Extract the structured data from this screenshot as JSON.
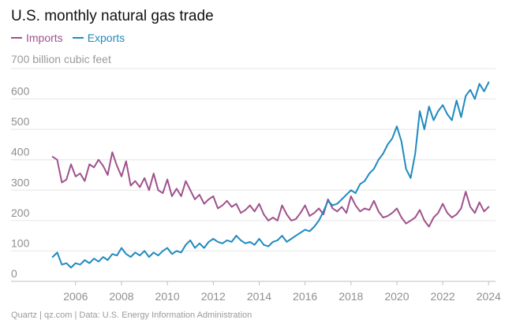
{
  "title": "U.S. monthly natural gas trade",
  "unit_label": "700 billion cubic feet",
  "footer": "Quartz | qz.com | Data: U.S. Energy Information Administration",
  "colors": {
    "imports": "#a0518c",
    "exports": "#1f8ac0",
    "grid": "#e6e6e6",
    "baseline": "#bfbfbf"
  },
  "chart_data": {
    "type": "line",
    "title": "U.S. monthly natural gas trade",
    "ylabel": "700 billion cubic feet",
    "ylim": [
      0,
      700
    ],
    "xlim": [
      2004.7,
      2024.3
    ],
    "yticks": [
      0,
      100,
      200,
      300,
      400,
      500,
      600
    ],
    "xticks": [
      2006,
      2008,
      2010,
      2012,
      2014,
      2016,
      2018,
      2020,
      2022,
      2024
    ],
    "grid": true,
    "legend": "top-left",
    "series": [
      {
        "name": "Imports",
        "color": "#a0518c",
        "points": [
          [
            2005.0,
            410
          ],
          [
            2005.2,
            400
          ],
          [
            2005.4,
            325
          ],
          [
            2005.6,
            335
          ],
          [
            2005.8,
            385
          ],
          [
            2006.0,
            345
          ],
          [
            2006.2,
            355
          ],
          [
            2006.4,
            330
          ],
          [
            2006.6,
            385
          ],
          [
            2006.8,
            375
          ],
          [
            2007.0,
            400
          ],
          [
            2007.2,
            380
          ],
          [
            2007.4,
            350
          ],
          [
            2007.6,
            425
          ],
          [
            2007.8,
            380
          ],
          [
            2008.0,
            345
          ],
          [
            2008.2,
            395
          ],
          [
            2008.4,
            315
          ],
          [
            2008.6,
            330
          ],
          [
            2008.8,
            310
          ],
          [
            2009.0,
            340
          ],
          [
            2009.2,
            300
          ],
          [
            2009.4,
            355
          ],
          [
            2009.6,
            300
          ],
          [
            2009.8,
            290
          ],
          [
            2010.0,
            335
          ],
          [
            2010.2,
            280
          ],
          [
            2010.4,
            305
          ],
          [
            2010.6,
            280
          ],
          [
            2010.8,
            330
          ],
          [
            2011.0,
            300
          ],
          [
            2011.2,
            270
          ],
          [
            2011.4,
            285
          ],
          [
            2011.6,
            255
          ],
          [
            2011.8,
            270
          ],
          [
            2012.0,
            280
          ],
          [
            2012.2,
            240
          ],
          [
            2012.4,
            250
          ],
          [
            2012.6,
            265
          ],
          [
            2012.8,
            245
          ],
          [
            2013.0,
            255
          ],
          [
            2013.2,
            225
          ],
          [
            2013.4,
            235
          ],
          [
            2013.6,
            250
          ],
          [
            2013.8,
            230
          ],
          [
            2014.0,
            255
          ],
          [
            2014.2,
            220
          ],
          [
            2014.4,
            200
          ],
          [
            2014.6,
            210
          ],
          [
            2014.8,
            200
          ],
          [
            2015.0,
            250
          ],
          [
            2015.2,
            220
          ],
          [
            2015.4,
            200
          ],
          [
            2015.6,
            205
          ],
          [
            2015.8,
            225
          ],
          [
            2016.0,
            250
          ],
          [
            2016.2,
            215
          ],
          [
            2016.4,
            225
          ],
          [
            2016.6,
            240
          ],
          [
            2016.8,
            220
          ],
          [
            2017.0,
            270
          ],
          [
            2017.2,
            240
          ],
          [
            2017.4,
            230
          ],
          [
            2017.6,
            245
          ],
          [
            2017.8,
            225
          ],
          [
            2018.0,
            280
          ],
          [
            2018.2,
            250
          ],
          [
            2018.4,
            230
          ],
          [
            2018.6,
            240
          ],
          [
            2018.8,
            235
          ],
          [
            2019.0,
            265
          ],
          [
            2019.2,
            230
          ],
          [
            2019.4,
            210
          ],
          [
            2019.6,
            215
          ],
          [
            2019.8,
            225
          ],
          [
            2020.0,
            240
          ],
          [
            2020.2,
            210
          ],
          [
            2020.4,
            190
          ],
          [
            2020.6,
            200
          ],
          [
            2020.8,
            210
          ],
          [
            2021.0,
            235
          ],
          [
            2021.2,
            200
          ],
          [
            2021.4,
            180
          ],
          [
            2021.6,
            210
          ],
          [
            2021.8,
            225
          ],
          [
            2022.0,
            255
          ],
          [
            2022.2,
            225
          ],
          [
            2022.4,
            210
          ],
          [
            2022.6,
            220
          ],
          [
            2022.8,
            240
          ],
          [
            2023.0,
            295
          ],
          [
            2023.2,
            245
          ],
          [
            2023.4,
            225
          ],
          [
            2023.6,
            260
          ],
          [
            2023.8,
            230
          ],
          [
            2024.0,
            245
          ]
        ]
      },
      {
        "name": "Exports",
        "color": "#1f8ac0",
        "points": [
          [
            2005.0,
            80
          ],
          [
            2005.2,
            95
          ],
          [
            2005.4,
            55
          ],
          [
            2005.6,
            60
          ],
          [
            2005.8,
            45
          ],
          [
            2006.0,
            60
          ],
          [
            2006.2,
            55
          ],
          [
            2006.4,
            70
          ],
          [
            2006.6,
            60
          ],
          [
            2006.8,
            75
          ],
          [
            2007.0,
            65
          ],
          [
            2007.2,
            80
          ],
          [
            2007.4,
            70
          ],
          [
            2007.6,
            90
          ],
          [
            2007.8,
            85
          ],
          [
            2008.0,
            110
          ],
          [
            2008.2,
            90
          ],
          [
            2008.4,
            80
          ],
          [
            2008.6,
            95
          ],
          [
            2008.8,
            85
          ],
          [
            2009.0,
            100
          ],
          [
            2009.2,
            80
          ],
          [
            2009.4,
            95
          ],
          [
            2009.6,
            85
          ],
          [
            2009.8,
            100
          ],
          [
            2010.0,
            110
          ],
          [
            2010.2,
            90
          ],
          [
            2010.4,
            100
          ],
          [
            2010.6,
            95
          ],
          [
            2010.8,
            120
          ],
          [
            2011.0,
            135
          ],
          [
            2011.2,
            110
          ],
          [
            2011.4,
            125
          ],
          [
            2011.6,
            110
          ],
          [
            2011.8,
            130
          ],
          [
            2012.0,
            140
          ],
          [
            2012.2,
            130
          ],
          [
            2012.4,
            125
          ],
          [
            2012.6,
            135
          ],
          [
            2012.8,
            130
          ],
          [
            2013.0,
            150
          ],
          [
            2013.2,
            135
          ],
          [
            2013.4,
            125
          ],
          [
            2013.6,
            130
          ],
          [
            2013.8,
            120
          ],
          [
            2014.0,
            140
          ],
          [
            2014.2,
            120
          ],
          [
            2014.4,
            115
          ],
          [
            2014.6,
            130
          ],
          [
            2014.8,
            135
          ],
          [
            2015.0,
            150
          ],
          [
            2015.2,
            130
          ],
          [
            2015.4,
            140
          ],
          [
            2015.6,
            150
          ],
          [
            2015.8,
            160
          ],
          [
            2016.0,
            170
          ],
          [
            2016.2,
            165
          ],
          [
            2016.4,
            180
          ],
          [
            2016.6,
            200
          ],
          [
            2016.8,
            230
          ],
          [
            2017.0,
            265
          ],
          [
            2017.2,
            250
          ],
          [
            2017.4,
            255
          ],
          [
            2017.6,
            270
          ],
          [
            2017.8,
            285
          ],
          [
            2018.0,
            300
          ],
          [
            2018.2,
            290
          ],
          [
            2018.4,
            320
          ],
          [
            2018.6,
            330
          ],
          [
            2018.8,
            355
          ],
          [
            2019.0,
            370
          ],
          [
            2019.2,
            400
          ],
          [
            2019.4,
            420
          ],
          [
            2019.6,
            450
          ],
          [
            2019.8,
            470
          ],
          [
            2020.0,
            510
          ],
          [
            2020.2,
            460
          ],
          [
            2020.4,
            370
          ],
          [
            2020.6,
            340
          ],
          [
            2020.8,
            420
          ],
          [
            2021.0,
            560
          ],
          [
            2021.2,
            500
          ],
          [
            2021.4,
            575
          ],
          [
            2021.6,
            530
          ],
          [
            2021.8,
            560
          ],
          [
            2022.0,
            580
          ],
          [
            2022.2,
            550
          ],
          [
            2022.4,
            530
          ],
          [
            2022.6,
            595
          ],
          [
            2022.8,
            540
          ],
          [
            2023.0,
            610
          ],
          [
            2023.2,
            630
          ],
          [
            2023.4,
            600
          ],
          [
            2023.6,
            650
          ],
          [
            2023.8,
            625
          ],
          [
            2024.0,
            655
          ]
        ]
      }
    ]
  }
}
